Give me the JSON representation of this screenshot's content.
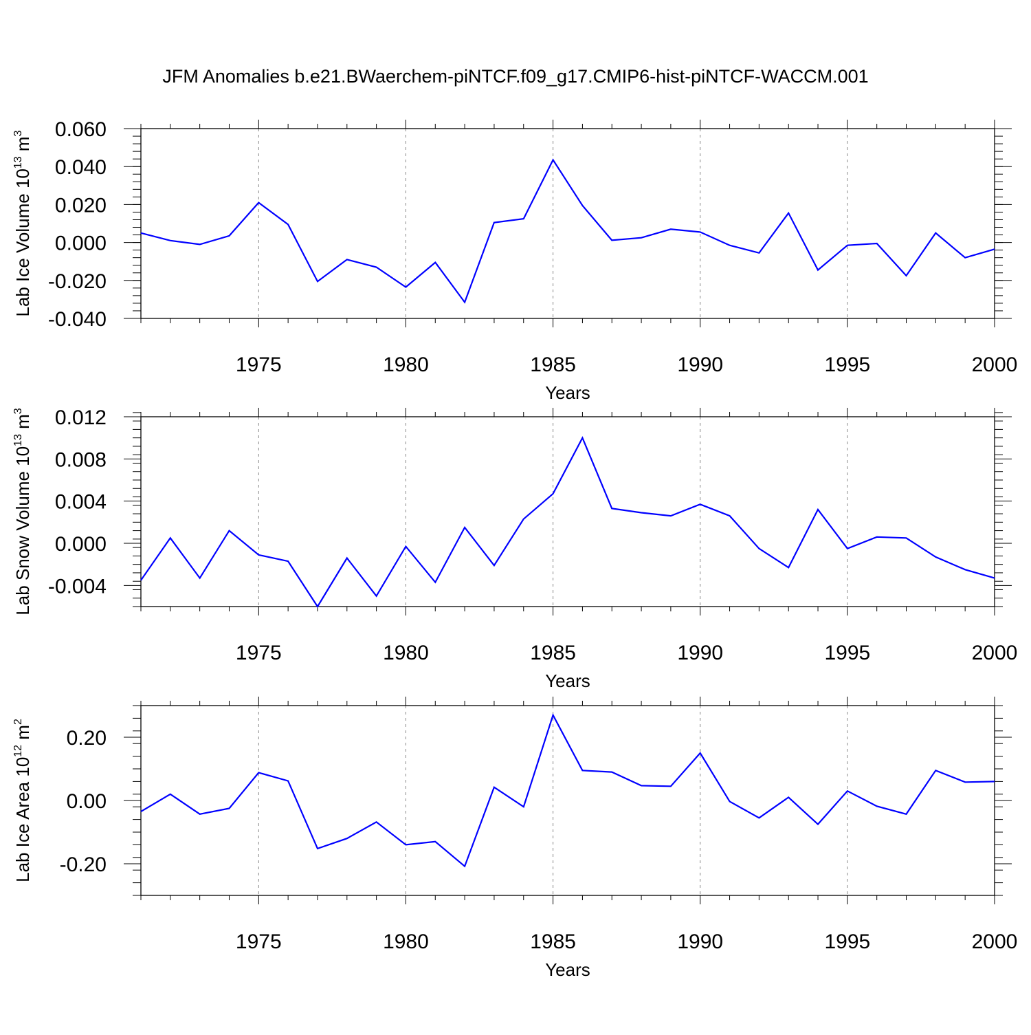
{
  "title": "JFM Anomalies b.e21.BWaerchem-piNTCF.f09_g17.CMIP6-hist-piNTCF-WACCM.001",
  "colors": {
    "line": "#0000ff",
    "axis": "#000000",
    "grid": "#888888"
  },
  "chart_data": [
    {
      "type": "line",
      "xlabel": "Years",
      "ylabel_main": "Lab Ice Volume 10",
      "ylabel_exp": "13",
      "ylabel_unit": " m",
      "ylabel_unit_exp": "3",
      "xlim": [
        1971,
        2000
      ],
      "ylim": [
        -0.04,
        0.06
      ],
      "yticks": [
        {
          "v": 0.06,
          "label": "0.060"
        },
        {
          "v": 0.04,
          "label": "0.040"
        },
        {
          "v": 0.02,
          "label": "0.020"
        },
        {
          "v": 0.0,
          "label": "0.000"
        },
        {
          "v": -0.02,
          "label": "-0.020"
        },
        {
          "v": -0.04,
          "label": "-0.040"
        }
      ],
      "yminor_step": 0.004,
      "xticks": [
        {
          "v": 1975,
          "label": "1975"
        },
        {
          "v": 1980,
          "label": "1980"
        },
        {
          "v": 1985,
          "label": "1985"
        },
        {
          "v": 1990,
          "label": "1990"
        },
        {
          "v": 1995,
          "label": "1995"
        },
        {
          "v": 2000,
          "label": "2000"
        }
      ],
      "grid_x": true,
      "x": [
        1971,
        1972,
        1973,
        1974,
        1975,
        1976,
        1977,
        1978,
        1979,
        1980,
        1981,
        1982,
        1983,
        1984,
        1985,
        1986,
        1987,
        1988,
        1989,
        1990,
        1991,
        1992,
        1993,
        1994,
        1995,
        1996,
        1997,
        1998,
        1999,
        2000
      ],
      "values": [
        0.005,
        0.001,
        -0.001,
        0.0035,
        0.021,
        0.0095,
        -0.0205,
        -0.009,
        -0.013,
        -0.0235,
        -0.0105,
        -0.0315,
        0.0105,
        0.0125,
        0.0435,
        0.0195,
        0.0012,
        0.0025,
        0.007,
        0.0055,
        -0.0015,
        -0.0055,
        0.0155,
        -0.0145,
        -0.0015,
        -0.0005,
        -0.0175,
        0.005,
        -0.008,
        -0.0035
      ]
    },
    {
      "type": "line",
      "xlabel": "Years",
      "ylabel_main": "Lab Snow Volume 10",
      "ylabel_exp": "13",
      "ylabel_unit": " m",
      "ylabel_unit_exp": "3",
      "xlim": [
        1971,
        2000
      ],
      "ylim": [
        -0.006,
        0.012
      ],
      "yticks": [
        {
          "v": 0.012,
          "label": "0.012"
        },
        {
          "v": 0.008,
          "label": "0.008"
        },
        {
          "v": 0.004,
          "label": "0.004"
        },
        {
          "v": 0.0,
          "label": "0.000"
        },
        {
          "v": -0.004,
          "label": "-0.004"
        }
      ],
      "yminor_step": 0.0008,
      "xticks": [
        {
          "v": 1975,
          "label": "1975"
        },
        {
          "v": 1980,
          "label": "1980"
        },
        {
          "v": 1985,
          "label": "1985"
        },
        {
          "v": 1990,
          "label": "1990"
        },
        {
          "v": 1995,
          "label": "1995"
        },
        {
          "v": 2000,
          "label": "2000"
        }
      ],
      "grid_x": true,
      "x": [
        1971,
        1972,
        1973,
        1974,
        1975,
        1976,
        1977,
        1978,
        1979,
        1980,
        1981,
        1982,
        1983,
        1984,
        1985,
        1986,
        1987,
        1988,
        1989,
        1990,
        1991,
        1992,
        1993,
        1994,
        1995,
        1996,
        1997,
        1998,
        1999,
        2000
      ],
      "values": [
        -0.0035,
        0.0005,
        -0.0033,
        0.0012,
        -0.0011,
        -0.0017,
        -0.006,
        -0.0014,
        -0.005,
        -0.0003,
        -0.0037,
        0.0015,
        -0.0021,
        0.0023,
        0.0047,
        0.01,
        0.0033,
        0.0029,
        0.0026,
        0.0037,
        0.0026,
        -0.0005,
        -0.0023,
        0.0032,
        -0.0005,
        0.0006,
        0.0005,
        -0.0013,
        -0.0025,
        -0.0033
      ]
    },
    {
      "type": "line",
      "xlabel": "Years",
      "ylabel_main": "Lab Ice Area 10",
      "ylabel_exp": "12",
      "ylabel_unit": " m",
      "ylabel_unit_exp": "2",
      "xlim": [
        1971,
        2000
      ],
      "ylim": [
        -0.3,
        0.3
      ],
      "yticks": [
        {
          "v": 0.2,
          "label": "0.20"
        },
        {
          "v": 0.0,
          "label": "0.00"
        },
        {
          "v": -0.2,
          "label": "-0.20"
        }
      ],
      "yminor_step": 0.04,
      "xticks": [
        {
          "v": 1975,
          "label": "1975"
        },
        {
          "v": 1980,
          "label": "1980"
        },
        {
          "v": 1985,
          "label": "1985"
        },
        {
          "v": 1990,
          "label": "1990"
        },
        {
          "v": 1995,
          "label": "1995"
        },
        {
          "v": 2000,
          "label": "2000"
        }
      ],
      "grid_x": true,
      "x": [
        1971,
        1972,
        1973,
        1974,
        1975,
        1976,
        1977,
        1978,
        1979,
        1980,
        1981,
        1982,
        1983,
        1984,
        1985,
        1986,
        1987,
        1988,
        1989,
        1990,
        1991,
        1992,
        1993,
        1994,
        1995,
        1996,
        1997,
        1998,
        1999,
        2000
      ],
      "values": [
        -0.035,
        0.02,
        -0.043,
        -0.025,
        0.088,
        0.062,
        -0.152,
        -0.12,
        -0.068,
        -0.14,
        -0.13,
        -0.208,
        0.042,
        -0.02,
        0.27,
        0.095,
        0.09,
        0.047,
        0.045,
        0.15,
        -0.003,
        -0.055,
        0.01,
        -0.075,
        0.03,
        -0.018,
        -0.043,
        0.095,
        0.058,
        0.06
      ]
    }
  ]
}
